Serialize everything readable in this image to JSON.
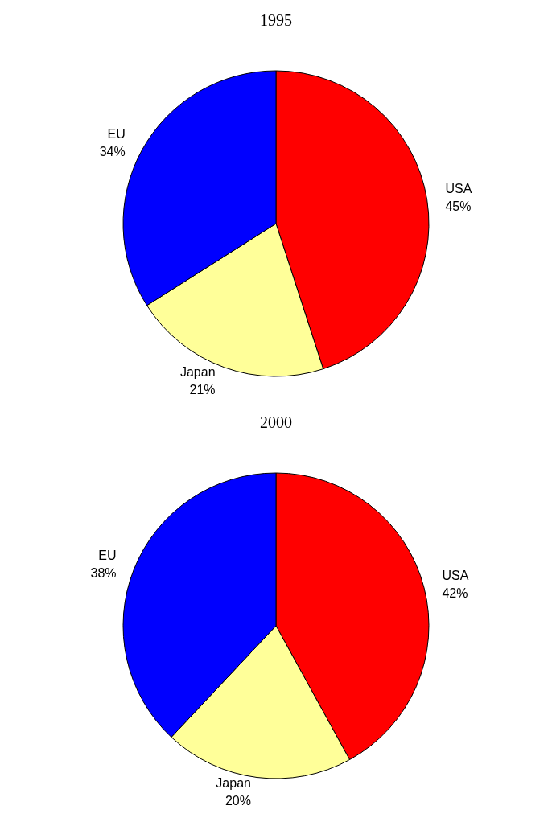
{
  "chart_data": [
    {
      "type": "pie",
      "title": "1995",
      "categories": [
        "USA",
        "Japan",
        "EU"
      ],
      "values": [
        45,
        21,
        34
      ],
      "colors": [
        "#ff0000",
        "#ffff99",
        "#0000ff"
      ],
      "value_labels": [
        "45%",
        "21%",
        "34%"
      ]
    },
    {
      "type": "pie",
      "title": "2000",
      "categories": [
        "USA",
        "Japan",
        "EU"
      ],
      "values": [
        42,
        20,
        38
      ],
      "colors": [
        "#ff0000",
        "#ffff99",
        "#0000ff"
      ],
      "value_labels": [
        "42%",
        "20%",
        "38%"
      ]
    }
  ]
}
